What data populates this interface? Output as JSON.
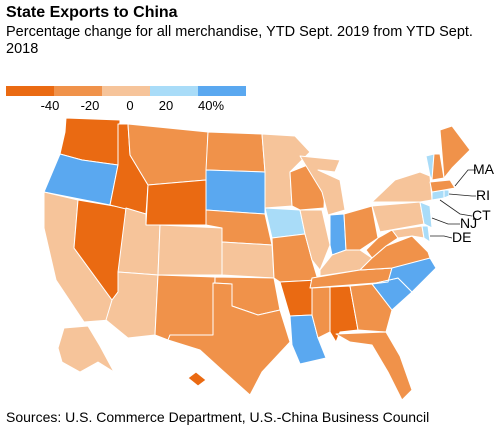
{
  "title": "State Exports to China",
  "subtitle": "Percentage change for all merchandise, YTD Sept. 2019 from YTD Sept. 2018",
  "legend": {
    "colors": [
      "#ea6a12",
      "#f0924a",
      "#f6c49a",
      "#a9dcf8",
      "#5aa8f0"
    ],
    "ticks": [
      "-40",
      "-20",
      "0",
      "20",
      "40%"
    ]
  },
  "callouts": [
    "MA",
    "RI",
    "CT",
    "NJ",
    "DE"
  ],
  "source": "Sources: U.S. Commerce Department, U.S.-China Business Council"
}
